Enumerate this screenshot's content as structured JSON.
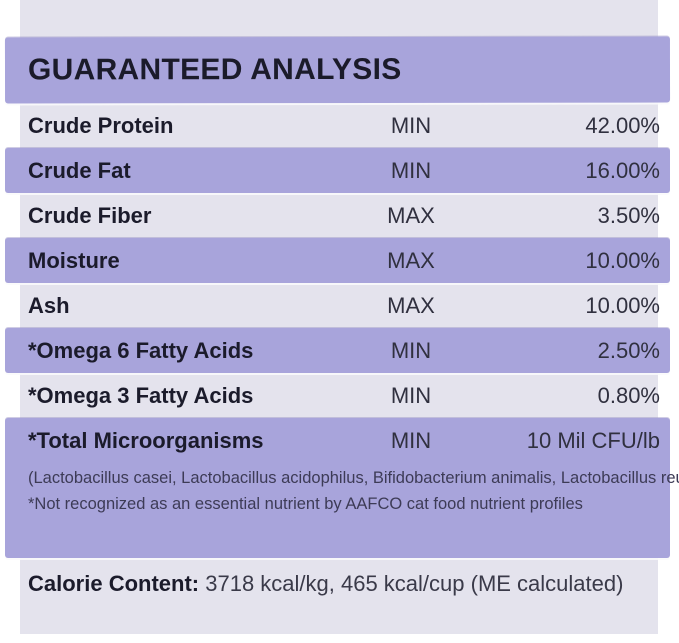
{
  "colors": {
    "paper": "#e4e3ed",
    "stripe": "#a8a4db",
    "title_text": "#1b1b2a",
    "label_text": "#1b1b2b",
    "value_text": "#30303f",
    "footnote_text": "#3d3b56"
  },
  "header": {
    "title": "GUARANTEED ANALYSIS"
  },
  "analysis_table": {
    "columns": [
      "nutrient",
      "qualifier",
      "value"
    ],
    "rows": [
      {
        "label": "Crude Protein",
        "qualifier": "MIN",
        "value": "42.00%",
        "highlighted": false
      },
      {
        "label": "Crude Fat",
        "qualifier": "MIN",
        "value": "16.00%",
        "highlighted": true
      },
      {
        "label": "Crude Fiber",
        "qualifier": "MAX",
        "value": "3.50%",
        "highlighted": false
      },
      {
        "label": "Moisture",
        "qualifier": "MAX",
        "value": "10.00%",
        "highlighted": true
      },
      {
        "label": "Ash",
        "qualifier": "MAX",
        "value": "10.00%",
        "highlighted": false
      },
      {
        "label": "*Omega 6 Fatty Acids",
        "qualifier": "MIN",
        "value": "2.50%",
        "highlighted": true
      },
      {
        "label": "*Omega 3 Fatty Acids",
        "qualifier": "MIN",
        "value": "0.80%",
        "highlighted": false
      }
    ],
    "microorganisms_row": {
      "label": "*Total Microorganisms",
      "qualifier": "MIN",
      "value": "10 Mil CFU/lb",
      "highlighted": true
    }
  },
  "footnotes": {
    "strains": "(Lactobacillus casei, Lactobacillus acidophilus, Bifidobacterium animalis, Lactobacillus reuteri)",
    "aafco": "*Not recognized as an essential nutrient by AAFCO cat food nutrient profiles"
  },
  "calorie_content": {
    "label": "Calorie Content:",
    "value": " 3718 kcal/kg, 465 kcal/cup (ME calculated)"
  }
}
